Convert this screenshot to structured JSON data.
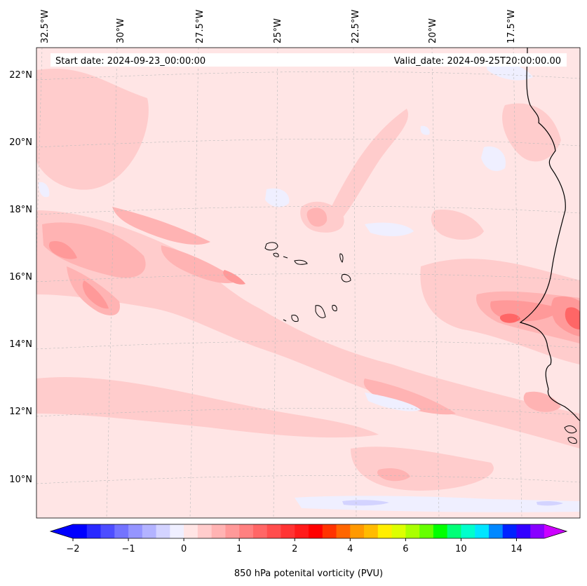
{
  "header": {
    "start_date": "Start date: 2024-09-23_00:00:00",
    "valid_date": "Valid_date: 2024-09-25T20:00:00.00"
  },
  "map": {
    "longitude_labels": [
      "32.5°W",
      "30°W",
      "27.5°W",
      "25°W",
      "22.5°W",
      "20°W",
      "17.5°W"
    ],
    "latitude_labels": [
      "22°N",
      "20°N",
      "18°N",
      "16°N",
      "14°N",
      "12°N",
      "10°N"
    ],
    "field": "850 hPa potential vorticity",
    "background_color": "#ffe5e5",
    "coastline_color": "#000000"
  },
  "colorbar": {
    "label": "850 hPa potenital vorticity (PVU)",
    "tick_labels": [
      "−2",
      "−1",
      "0",
      "1",
      "2",
      "4",
      "6",
      "10",
      "14"
    ],
    "colors": [
      "#0000ff",
      "#2929ff",
      "#4d4dff",
      "#7373ff",
      "#9595ff",
      "#b3b3ff",
      "#d3d3ff",
      "#efefff",
      "#ffe5e5",
      "#ffcccc",
      "#ffb3b3",
      "#ff9999",
      "#ff8080",
      "#ff6666",
      "#ff4d4d",
      "#ff3333",
      "#ff1a1a",
      "#ff0000",
      "#ff3300",
      "#ff6600",
      "#ff9900",
      "#ffbb00",
      "#ffee00",
      "#ddff00",
      "#aaff00",
      "#66ff00",
      "#00ff00",
      "#00ff77",
      "#00ffcc",
      "#00e5ff",
      "#0088ff",
      "#0022ff",
      "#3300ff",
      "#8800ff"
    ],
    "under_color": "#0000ff",
    "over_color": "#cc00ff"
  }
}
